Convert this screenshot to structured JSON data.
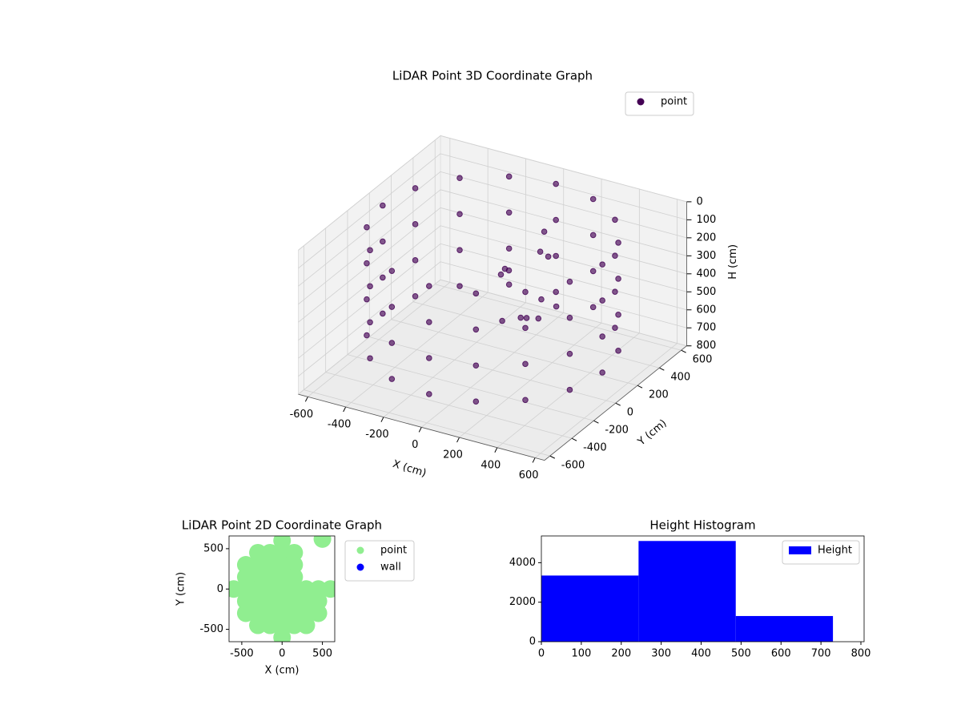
{
  "chart_data": [
    {
      "type": "scatter3d",
      "title": "LiDAR Point 3D Coordinate Graph",
      "xlabel": "X (cm)",
      "ylabel": "Y (cm)",
      "zlabel": "H (cm)",
      "xlim": [
        -650,
        650
      ],
      "ylim": [
        -650,
        650
      ],
      "zlim": [
        0,
        800
      ],
      "z_inverted": true,
      "xticks": [
        -600,
        -400,
        -200,
        0,
        200,
        400,
        600
      ],
      "yticks": [
        -600,
        -400,
        -200,
        0,
        200,
        400,
        600
      ],
      "zticks": [
        0,
        100,
        200,
        300,
        400,
        500,
        600,
        700,
        800
      ],
      "grid": true,
      "legend": "upper right",
      "series": [
        {
          "name": "point",
          "color": "#440154",
          "x": [
            580,
            536,
            410,
            222,
            0,
            -222,
            -410,
            -536,
            -580,
            -536,
            -410,
            -222,
            0,
            222,
            410,
            536,
            580,
            536,
            410,
            222,
            0,
            -222,
            -410,
            -536,
            -580,
            -536,
            -410,
            -222,
            0,
            222,
            410,
            536,
            580,
            536,
            410,
            222,
            0,
            -222,
            -410,
            -536,
            -580,
            -536,
            -410,
            -222,
            0,
            222,
            410,
            536,
            580,
            536,
            410,
            222,
            0,
            -222,
            -410,
            -536,
            -580,
            -536,
            -410,
            -222,
            0,
            222,
            410,
            536,
            100,
            150,
            50,
            -50,
            200,
            250,
            120,
            -100,
            300,
            180,
            0,
            80
          ],
          "y": [
            0,
            222,
            410,
            536,
            580,
            536,
            410,
            222,
            0,
            -222,
            -410,
            -536,
            -580,
            -536,
            -410,
            -222,
            0,
            222,
            410,
            536,
            580,
            536,
            410,
            222,
            0,
            -222,
            -410,
            -536,
            -580,
            -536,
            -410,
            -222,
            0,
            222,
            410,
            536,
            580,
            536,
            410,
            222,
            0,
            -222,
            -410,
            -536,
            -580,
            -536,
            -410,
            -222,
            0,
            222,
            410,
            536,
            580,
            536,
            410,
            222,
            0,
            -222,
            -410,
            -536,
            -580,
            -536,
            -410,
            -222,
            300,
            250,
            350,
            200,
            100,
            150,
            50,
            250,
            -100,
            0,
            150,
            -50
          ],
          "z": [
            50,
            50,
            50,
            50,
            50,
            50,
            50,
            50,
            50,
            50,
            50,
            50,
            50,
            50,
            50,
            50,
            250,
            250,
            250,
            250,
            250,
            250,
            250,
            250,
            250,
            250,
            250,
            250,
            250,
            250,
            250,
            250,
            450,
            450,
            450,
            450,
            450,
            450,
            450,
            450,
            450,
            450,
            450,
            450,
            450,
            450,
            450,
            450,
            650,
            650,
            650,
            650,
            650,
            650,
            650,
            650,
            650,
            650,
            650,
            650,
            650,
            650,
            650,
            650,
            150,
            250,
            300,
            350,
            400,
            450,
            500,
            420,
            380,
            460,
            320,
            480
          ]
        }
      ]
    },
    {
      "type": "scatter",
      "title": "LiDAR Point 2D Coordinate Graph",
      "xlabel": "X (cm)",
      "ylabel": "Y (cm)",
      "xlim": [
        -658,
        653
      ],
      "ylim": [
        -653,
        658
      ],
      "xticks": [
        -500,
        0,
        500
      ],
      "yticks": [
        -500,
        0,
        500
      ],
      "legend": "outside right",
      "series": [
        {
          "name": "point",
          "color": "#90ee90",
          "x": [
            0,
            -300,
            -150,
            0,
            150,
            -450,
            -300,
            -150,
            0,
            150,
            -450,
            -300,
            -150,
            0,
            150,
            -600,
            -450,
            -300,
            -150,
            0,
            150,
            300,
            450,
            600,
            -450,
            -300,
            -150,
            0,
            150,
            300,
            450,
            -450,
            -300,
            -150,
            0,
            150,
            300,
            450,
            -300,
            -150,
            0,
            150,
            300,
            0,
            500
          ],
          "y": [
            600,
            450,
            450,
            450,
            450,
            300,
            300,
            300,
            300,
            300,
            150,
            150,
            150,
            150,
            150,
            0,
            0,
            0,
            0,
            0,
            0,
            0,
            0,
            0,
            -150,
            -150,
            -150,
            -150,
            -150,
            -150,
            -150,
            -300,
            -300,
            -300,
            -300,
            -300,
            -300,
            -300,
            -450,
            -450,
            -450,
            -450,
            -450,
            -600,
            620
          ]
        },
        {
          "name": "wall",
          "color": "#0000ff",
          "x": [],
          "y": []
        }
      ]
    },
    {
      "type": "histogram",
      "title": "Height Histogram",
      "name": "Height",
      "color": "#0000ff",
      "bins": [
        0,
        243.33,
        486.67,
        730
      ],
      "values": [
        3350,
        5100,
        1300
      ],
      "xlim": [
        0,
        808
      ],
      "ylim": [
        0,
        5355
      ],
      "xticks": [
        0,
        100,
        200,
        300,
        400,
        500,
        600,
        700,
        800
      ],
      "yticks": [
        0,
        2000,
        4000
      ],
      "legend": "upper right"
    }
  ]
}
